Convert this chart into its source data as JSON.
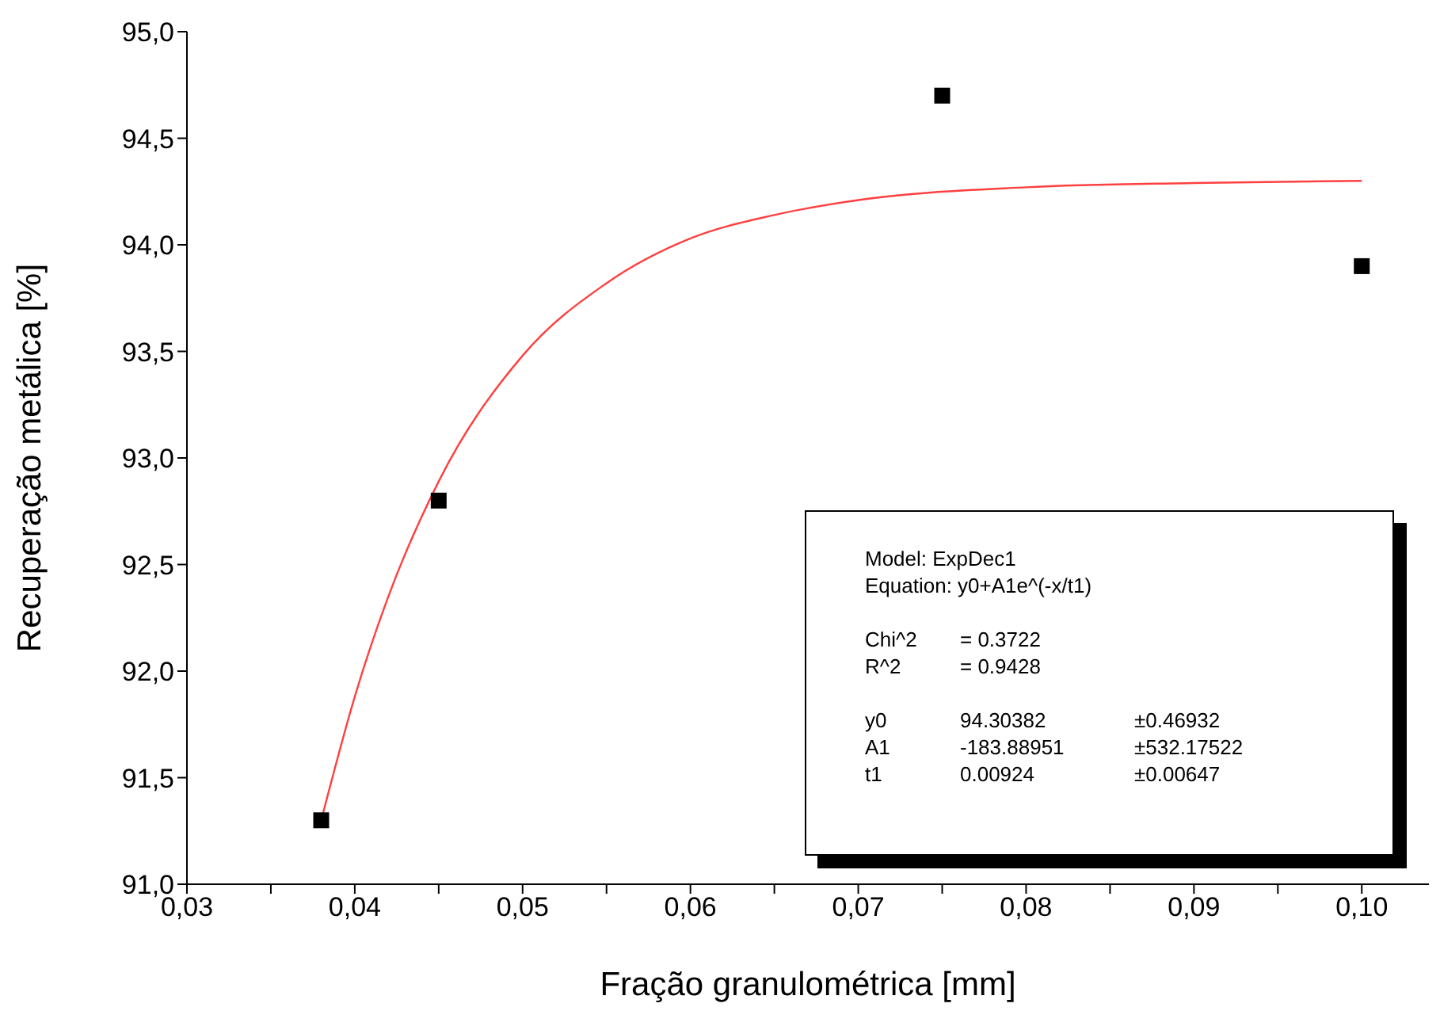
{
  "chart_data": {
    "type": "scatter",
    "xlabel": "Fração granulométrica [mm]",
    "ylabel": "Recuperação metálica [%]",
    "xlim": [
      0.03,
      0.104
    ],
    "xticks": [
      {
        "value": 0.03,
        "label": "0,03"
      },
      {
        "value": 0.035,
        "label": null
      },
      {
        "value": 0.04,
        "label": "0,04"
      },
      {
        "value": 0.045,
        "label": null
      },
      {
        "value": 0.05,
        "label": "0,05"
      },
      {
        "value": 0.055,
        "label": null
      },
      {
        "value": 0.06,
        "label": "0,06"
      },
      {
        "value": 0.065,
        "label": null
      },
      {
        "value": 0.07,
        "label": "0,07"
      },
      {
        "value": 0.075,
        "label": null
      },
      {
        "value": 0.08,
        "label": "0,08"
      },
      {
        "value": 0.085,
        "label": null
      },
      {
        "value": 0.09,
        "label": "0,09"
      },
      {
        "value": 0.095,
        "label": null
      },
      {
        "value": 0.1,
        "label": "0,10"
      }
    ],
    "ylim": [
      91.0,
      95.0
    ],
    "yticks": [
      {
        "value": 91.0,
        "label": "91,0"
      },
      {
        "value": 91.5,
        "label": "91,5"
      },
      {
        "value": 92.0,
        "label": "92,0"
      },
      {
        "value": 92.5,
        "label": "92,5"
      },
      {
        "value": 93.0,
        "label": "93,0"
      },
      {
        "value": 93.5,
        "label": "93,5"
      },
      {
        "value": 94.0,
        "label": "94,0"
      },
      {
        "value": 94.5,
        "label": "94,5"
      },
      {
        "value": 95.0,
        "label": "95,0"
      }
    ],
    "marker": "square",
    "series": [
      {
        "color": "#000000",
        "x": [
          0.038,
          0.045,
          0.075,
          0.1
        ],
        "values": [
          91.3,
          92.8,
          94.7,
          93.9
        ]
      },
      {
        "type": "line",
        "marker": "none",
        "color": "#ff4040",
        "x": [
          0.038,
          0.04,
          0.042,
          0.045,
          0.05,
          0.055,
          0.06,
          0.065,
          0.07,
          0.08,
          0.09,
          0.1
        ],
        "values": [
          91.3,
          91.88,
          92.35,
          92.89,
          93.48,
          93.82,
          94.03,
          94.14,
          94.21,
          94.27,
          94.29,
          94.3
        ]
      }
    ],
    "annotations": [
      "Model: ExpDec1",
      "Equation: y0+A1e^(-x/t1)",
      "Chi^2",
      "= 0.3722",
      "R^2",
      "= 0.9428",
      "y0",
      "94.30382",
      "±0.46932",
      "A1",
      "-183.88951",
      "±532.17522",
      "t1",
      "0.00924",
      "±0.00647"
    ]
  }
}
